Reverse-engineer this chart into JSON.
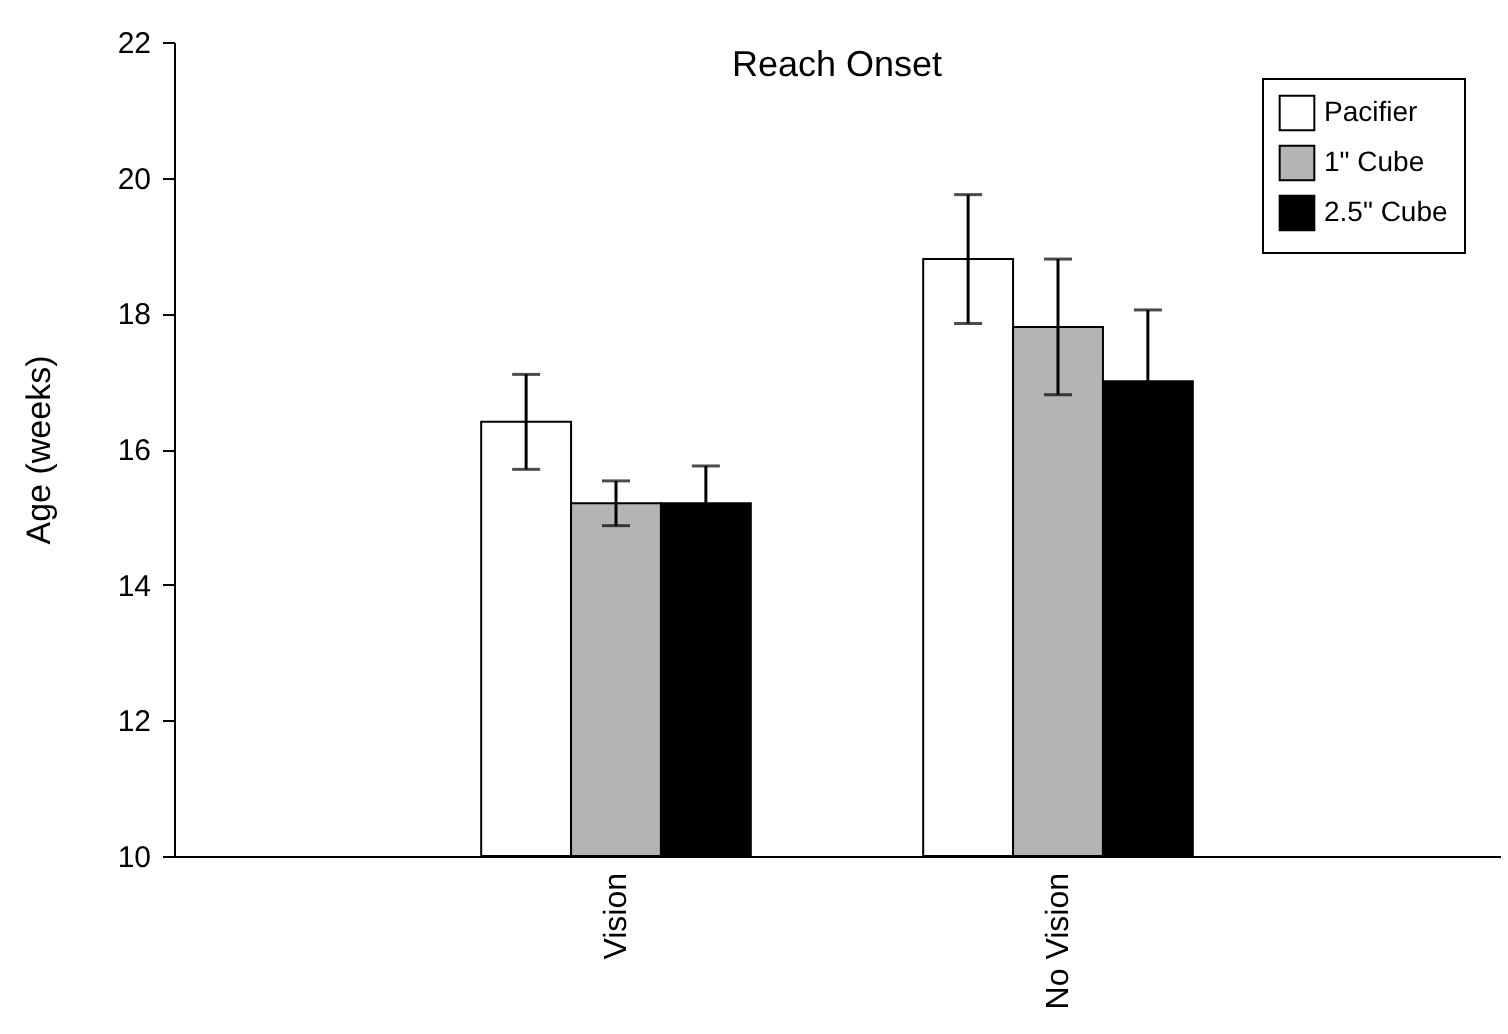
{
  "chart_data": {
    "type": "bar",
    "title": "Reach Onset",
    "ylabel": "Age (weeks)",
    "categories": [
      "Vision",
      "No Vision"
    ],
    "series": [
      {
        "name": "Pacifier",
        "color": "#ffffff",
        "values": [
          16.4,
          18.8
        ],
        "errors": [
          0.7,
          0.95
        ]
      },
      {
        "name": "1\" Cube",
        "color": "#b4b4b4",
        "values": [
          15.2,
          17.8
        ],
        "errors": [
          0.33,
          1.0
        ]
      },
      {
        "name": "2.5\" Cube",
        "color": "#000000",
        "values": [
          15.2,
          17.0
        ],
        "errors": [
          0.55,
          1.05
        ]
      }
    ],
    "ylim": [
      10,
      22
    ],
    "yticks": [
      10,
      12,
      14,
      16,
      18,
      20,
      22
    ],
    "grid": false,
    "legend": "top right"
  }
}
